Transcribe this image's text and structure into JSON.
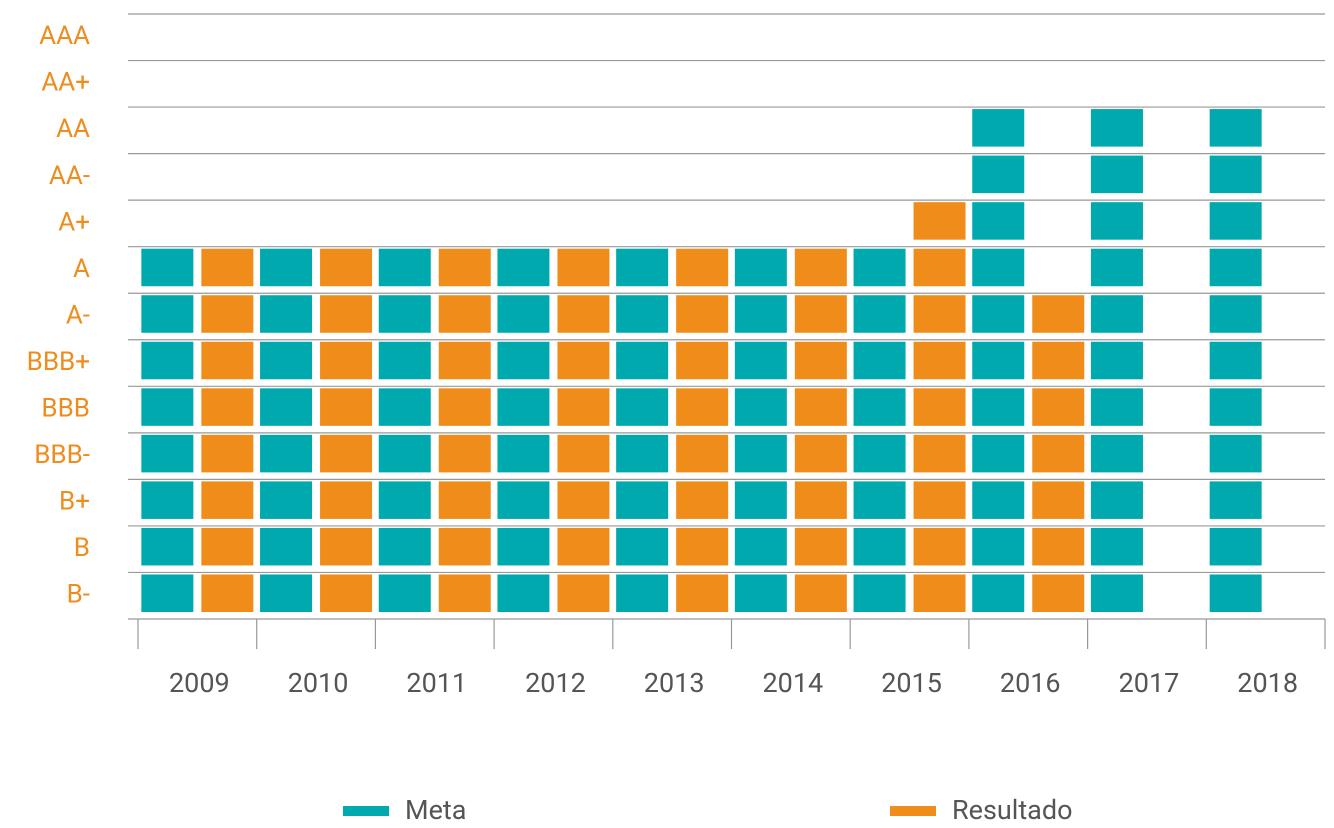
{
  "chart_data": {
    "type": "bar",
    "categories": [
      "2009",
      "2010",
      "2011",
      "2012",
      "2013",
      "2014",
      "2015",
      "2016",
      "2017",
      "2018"
    ],
    "series": [
      {
        "name": "Meta",
        "color": "#00a9ae",
        "values": [
          8,
          8,
          8,
          8,
          8,
          8,
          8,
          11,
          11,
          11
        ]
      },
      {
        "name": "Resultado",
        "color": "#f08d1a",
        "values": [
          8,
          8,
          8,
          8,
          8,
          8,
          9,
          7,
          null,
          null
        ]
      }
    ],
    "ylim": [
      0,
      13
    ],
    "yticks": [
      {
        "value": 1,
        "label": "B-"
      },
      {
        "value": 2,
        "label": "B"
      },
      {
        "value": 3,
        "label": "B+"
      },
      {
        "value": 4,
        "label": "BBB-"
      },
      {
        "value": 5,
        "label": "BBB"
      },
      {
        "value": 6,
        "label": "BBB+"
      },
      {
        "value": 7,
        "label": "A-"
      },
      {
        "value": 8,
        "label": "A"
      },
      {
        "value": 9,
        "label": "A+"
      },
      {
        "value": 10,
        "label": "AA-"
      },
      {
        "value": 11,
        "label": "AA"
      },
      {
        "value": 12,
        "label": "AA+"
      },
      {
        "value": 13,
        "label": "AAA"
      }
    ],
    "grid": true
  }
}
